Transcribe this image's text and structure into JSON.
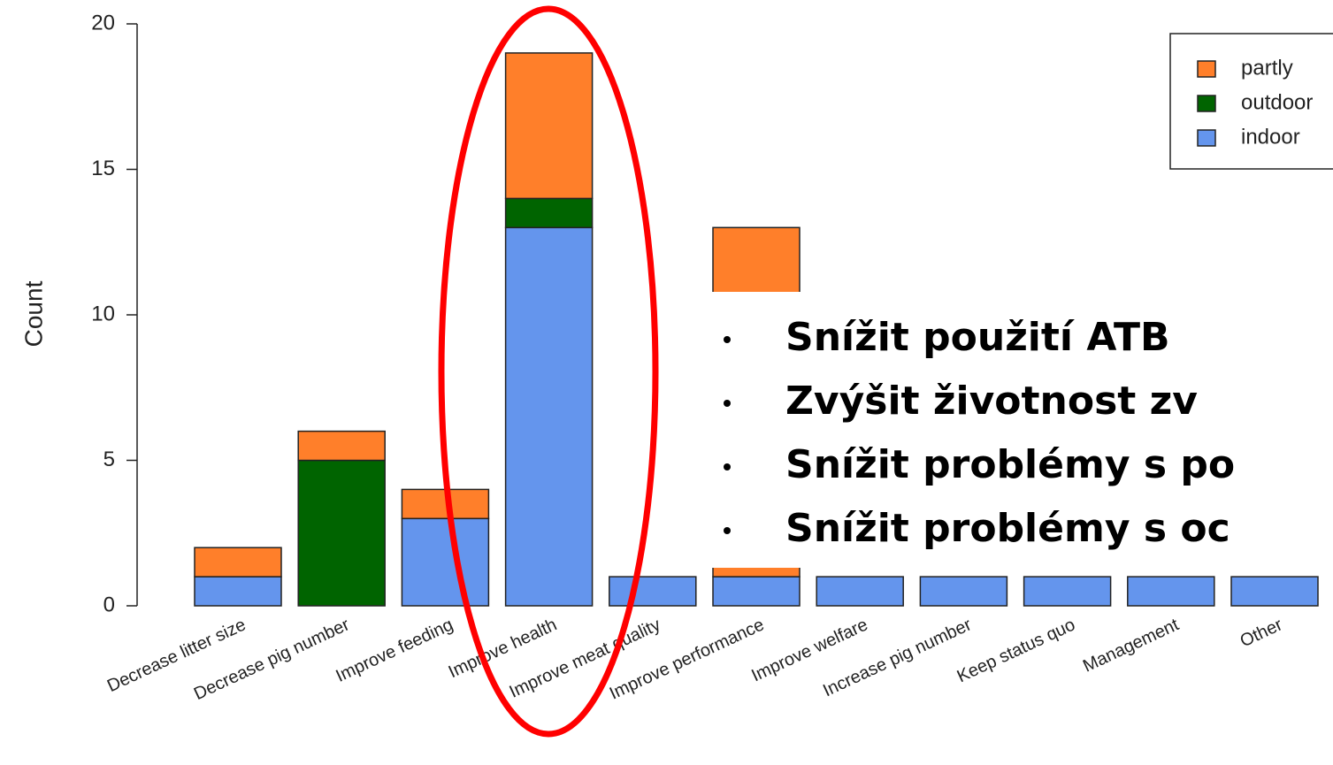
{
  "chart_data": {
    "type": "stacked_bar",
    "ylabel": "Count",
    "categories": [
      "Decrease litter size",
      "Decrease pig number",
      "Improve feeding",
      "Improve health",
      "Improve meat quality",
      "Improve performance",
      "Improve welfare",
      "Increase pig number",
      "Keep status quo",
      "Management",
      "Other"
    ],
    "series": [
      {
        "name": "indoor",
        "color": "#6495ed",
        "values": [
          1,
          0,
          3,
          13,
          1,
          1,
          1,
          1,
          1,
          1,
          1
        ]
      },
      {
        "name": "outdoor",
        "color": "#006400",
        "values": [
          0,
          5,
          0,
          1,
          0,
          0,
          0,
          0,
          0,
          0,
          0
        ]
      },
      {
        "name": "partly",
        "color": "#ff7f2a",
        "values": [
          1,
          1,
          1,
          5,
          0,
          12,
          0,
          0,
          0,
          0,
          0
        ]
      }
    ],
    "ylim": [
      0,
      20
    ],
    "yticks": [
      0,
      5,
      10,
      15,
      20
    ],
    "legend": "top-right",
    "annotations": [
      "Snížit použití ATB",
      "Zvýšit životnost  zv",
      "Snížit problémy s po",
      "Snížit problémy s oc"
    ]
  }
}
